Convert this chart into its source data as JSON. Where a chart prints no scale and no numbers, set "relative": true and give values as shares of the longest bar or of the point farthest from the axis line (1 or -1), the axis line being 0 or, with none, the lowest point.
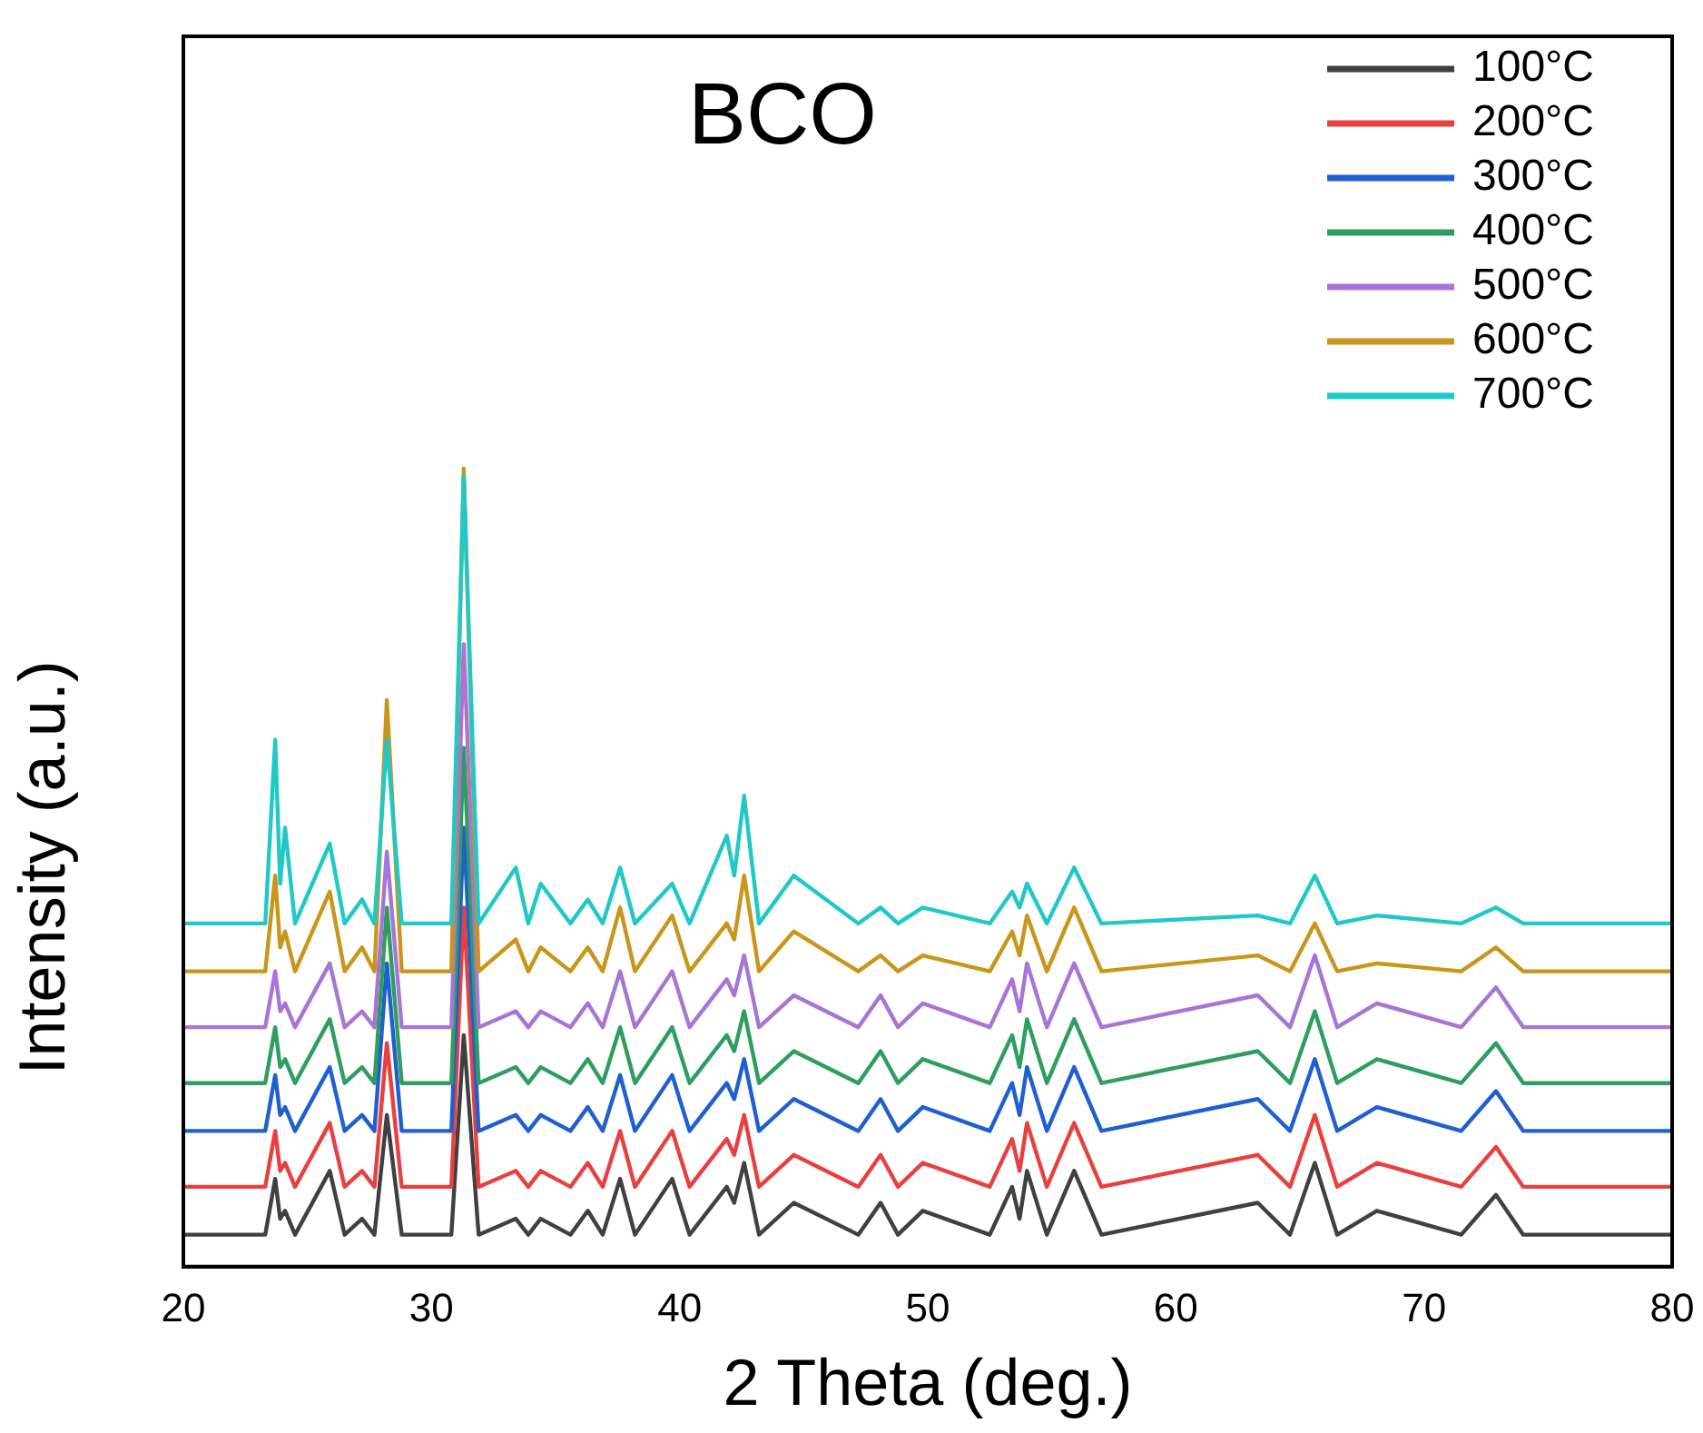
{
  "chart_data": {
    "type": "line",
    "title": "BCO",
    "xlabel": "2 Theta (deg.)",
    "ylabel": "Intensity (a.u.)",
    "relative": true,
    "legend": "top right",
    "grid": false,
    "marker": "none",
    "line_style": "solid",
    "xlim": [
      20,
      80
    ],
    "xticks": [
      20,
      30,
      40,
      50,
      60,
      70,
      80
    ],
    "x": [
      20,
      23.3,
      23.7,
      23.9,
      24.1,
      24.5,
      25.9,
      26.5,
      27.2,
      27.7,
      28.2,
      28.8,
      30.8,
      31.3,
      31.9,
      33.4,
      33.9,
      34.4,
      35.6,
      36.3,
      36.9,
      37.6,
      38.2,
      39.7,
      40.4,
      41.9,
      42.2,
      42.6,
      43.2,
      44.6,
      47.2,
      48.1,
      48.8,
      49.8,
      52.5,
      53.4,
      53.7,
      54.0,
      54.8,
      55.9,
      57,
      63.3,
      64.6,
      65.6,
      66.5,
      68.1,
      71.5,
      72.9,
      74,
      80
    ],
    "series": [
      {
        "name": "100°C",
        "color": "#404040",
        "values": [
          0.04,
          0.04,
          0.11,
          0.06,
          0.07,
          0.04,
          0.12,
          0.04,
          0.06,
          0.04,
          0.19,
          0.04,
          0.04,
          0.29,
          0.04,
          0.06,
          0.04,
          0.06,
          0.04,
          0.07,
          0.04,
          0.11,
          0.04,
          0.11,
          0.04,
          0.1,
          0.08,
          0.13,
          0.04,
          0.08,
          0.04,
          0.08,
          0.04,
          0.07,
          0.04,
          0.1,
          0.06,
          0.12,
          0.04,
          0.12,
          0.04,
          0.08,
          0.04,
          0.13,
          0.04,
          0.07,
          0.04,
          0.09,
          0.04,
          0.04
        ]
      },
      {
        "name": "200°C",
        "color": "#e8403f",
        "values": [
          0.1,
          0.1,
          0.17,
          0.12,
          0.13,
          0.1,
          0.18,
          0.1,
          0.12,
          0.1,
          0.28,
          0.1,
          0.1,
          0.45,
          0.1,
          0.12,
          0.1,
          0.12,
          0.1,
          0.13,
          0.1,
          0.17,
          0.1,
          0.17,
          0.1,
          0.16,
          0.14,
          0.19,
          0.1,
          0.14,
          0.1,
          0.14,
          0.1,
          0.13,
          0.1,
          0.16,
          0.12,
          0.18,
          0.1,
          0.18,
          0.1,
          0.14,
          0.1,
          0.19,
          0.1,
          0.13,
          0.1,
          0.15,
          0.1,
          0.1
        ]
      },
      {
        "name": "300°C",
        "color": "#1f5fcf",
        "values": [
          0.17,
          0.17,
          0.24,
          0.19,
          0.2,
          0.17,
          0.25,
          0.17,
          0.19,
          0.17,
          0.38,
          0.17,
          0.17,
          0.55,
          0.17,
          0.19,
          0.17,
          0.19,
          0.17,
          0.2,
          0.17,
          0.24,
          0.17,
          0.24,
          0.17,
          0.23,
          0.21,
          0.26,
          0.17,
          0.21,
          0.17,
          0.21,
          0.17,
          0.2,
          0.17,
          0.23,
          0.19,
          0.25,
          0.17,
          0.25,
          0.17,
          0.21,
          0.17,
          0.26,
          0.17,
          0.2,
          0.17,
          0.22,
          0.17,
          0.17
        ]
      },
      {
        "name": "400°C",
        "color": "#2e9e5e",
        "values": [
          0.23,
          0.23,
          0.3,
          0.25,
          0.26,
          0.23,
          0.31,
          0.23,
          0.25,
          0.23,
          0.45,
          0.23,
          0.23,
          0.65,
          0.23,
          0.25,
          0.23,
          0.25,
          0.23,
          0.26,
          0.23,
          0.3,
          0.23,
          0.3,
          0.23,
          0.29,
          0.27,
          0.32,
          0.23,
          0.27,
          0.23,
          0.27,
          0.23,
          0.26,
          0.23,
          0.29,
          0.25,
          0.31,
          0.23,
          0.31,
          0.23,
          0.27,
          0.23,
          0.32,
          0.23,
          0.26,
          0.23,
          0.28,
          0.23,
          0.23
        ]
      },
      {
        "name": "500°C",
        "color": "#a775d6",
        "values": [
          0.3,
          0.3,
          0.37,
          0.32,
          0.33,
          0.3,
          0.38,
          0.3,
          0.32,
          0.3,
          0.52,
          0.3,
          0.3,
          0.78,
          0.3,
          0.32,
          0.3,
          0.32,
          0.3,
          0.33,
          0.3,
          0.37,
          0.3,
          0.37,
          0.3,
          0.36,
          0.34,
          0.39,
          0.3,
          0.34,
          0.3,
          0.34,
          0.3,
          0.33,
          0.3,
          0.36,
          0.32,
          0.38,
          0.3,
          0.38,
          0.3,
          0.34,
          0.3,
          0.39,
          0.3,
          0.33,
          0.3,
          0.35,
          0.3,
          0.3
        ]
      },
      {
        "name": "600°C",
        "color": "#c8961a",
        "values": [
          0.37,
          0.37,
          0.49,
          0.4,
          0.42,
          0.37,
          0.47,
          0.37,
          0.4,
          0.37,
          0.71,
          0.37,
          0.37,
          1,
          0.37,
          0.41,
          0.37,
          0.4,
          0.37,
          0.4,
          0.37,
          0.45,
          0.37,
          0.44,
          0.37,
          0.43,
          0.41,
          0.49,
          0.37,
          0.42,
          0.37,
          0.39,
          0.37,
          0.39,
          0.37,
          0.42,
          0.39,
          0.44,
          0.37,
          0.45,
          0.37,
          0.39,
          0.37,
          0.43,
          0.37,
          0.38,
          0.37,
          0.4,
          0.37,
          0.37
        ]
      },
      {
        "name": "700°C",
        "color": "#20c8c8",
        "values": [
          0.43,
          0.43,
          0.66,
          0.48,
          0.55,
          0.43,
          0.53,
          0.43,
          0.46,
          0.43,
          0.66,
          0.43,
          0.43,
          0.99,
          0.43,
          0.5,
          0.43,
          0.48,
          0.43,
          0.46,
          0.43,
          0.5,
          0.43,
          0.48,
          0.43,
          0.54,
          0.49,
          0.59,
          0.43,
          0.49,
          0.43,
          0.45,
          0.43,
          0.45,
          0.43,
          0.47,
          0.45,
          0.48,
          0.43,
          0.5,
          0.43,
          0.44,
          0.43,
          0.49,
          0.43,
          0.44,
          0.43,
          0.45,
          0.43,
          0.43
        ]
      }
    ]
  }
}
